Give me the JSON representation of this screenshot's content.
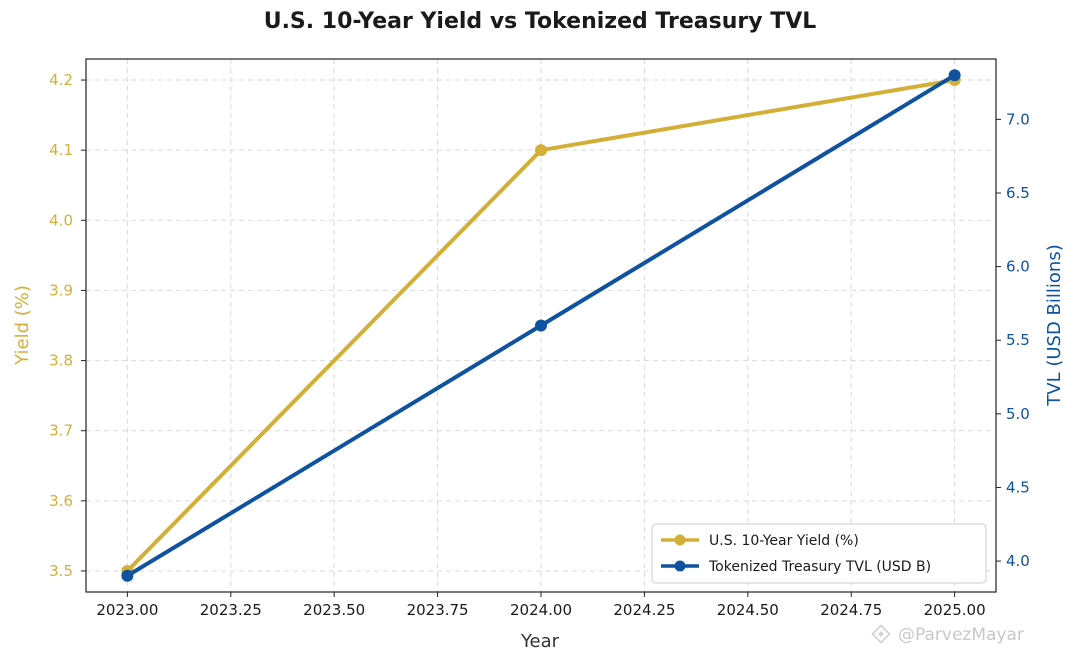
{
  "chart_data": {
    "type": "line",
    "title": "U.S. 10-Year Yield vs Tokenized Treasury TVL",
    "xlabel": "Year",
    "x": [
      2023,
      2024,
      2025
    ],
    "x_ticks": [
      2023.0,
      2023.25,
      2023.5,
      2023.75,
      2024.0,
      2024.25,
      2024.5,
      2024.75,
      2025.0
    ],
    "x_tick_labels": [
      "2023.00",
      "2023.25",
      "2023.50",
      "2023.75",
      "2024.00",
      "2024.25",
      "2024.50",
      "2024.75",
      "2025.00"
    ],
    "xlim": [
      2022.9,
      2025.1
    ],
    "grid": true,
    "legend_position": "lower-right",
    "axes": {
      "left": {
        "label": "Yield (%)",
        "color": "#D4AF37",
        "ylim": [
          3.47,
          4.23
        ],
        "ticks": [
          3.5,
          3.6,
          3.7,
          3.8,
          3.9,
          4.0,
          4.1,
          4.2
        ],
        "tick_labels": [
          "3.5",
          "3.6",
          "3.7",
          "3.8",
          "3.9",
          "4.0",
          "4.1",
          "4.2"
        ]
      },
      "right": {
        "label": "TVL (USD Billions)",
        "color": "#0F52A0",
        "ylim": [
          3.79,
          7.41
        ],
        "ticks": [
          4.0,
          4.5,
          5.0,
          5.5,
          6.0,
          6.5,
          7.0
        ],
        "tick_labels": [
          "4.0",
          "4.5",
          "5.0",
          "5.5",
          "6.0",
          "6.5",
          "7.0"
        ]
      }
    },
    "series": [
      {
        "name": "U.S. 10-Year Yield (%)",
        "axis": "left",
        "color": "#D4AF37",
        "values": [
          3.5,
          4.1,
          4.2
        ]
      },
      {
        "name": "Tokenized Treasury TVL (USD B)",
        "axis": "right",
        "color": "#0F52A0",
        "values": [
          3.9,
          5.6,
          7.3
        ]
      }
    ]
  },
  "watermark": {
    "text": "@ParvezMayar"
  }
}
